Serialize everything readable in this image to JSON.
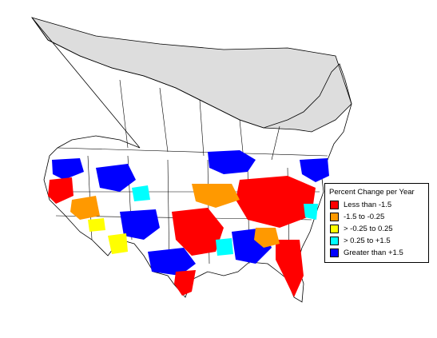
{
  "legend": {
    "title": "Percent Change per Year",
    "items": [
      {
        "label": "Less than -1.5",
        "color": "#ff0000"
      },
      {
        "label": "-1.5 to -0.25",
        "color": "#ff9900"
      },
      {
        "label": "> -0.25 to 0.25",
        "color": "#ffff00"
      },
      {
        "label": "> 0.25 to +1.5",
        "color": "#00ffff"
      },
      {
        "label": "Greater than +1.5",
        "color": "#0000ff"
      }
    ]
  },
  "map_colors": {
    "no_data_region": "#dddddd",
    "land": "#ffffff",
    "boundary": "#000000"
  }
}
